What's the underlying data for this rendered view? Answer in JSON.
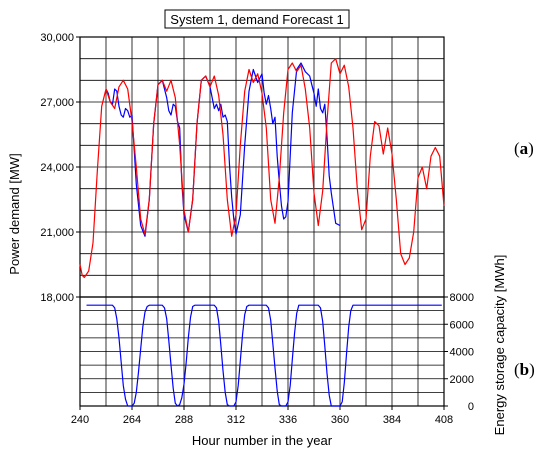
{
  "chart_data": [
    {
      "panel_label": "(a)",
      "type": "line",
      "title": "System 1, demand Forecast 1",
      "ylabel": "Power demand [MW]",
      "xlim": [
        240,
        408
      ],
      "ylim": [
        18000,
        30000
      ],
      "y_ticks": [
        "18,000",
        "21,000",
        "24,000",
        "27,000",
        "30,000"
      ],
      "grid": true,
      "colors": {
        "red": "#ff0000",
        "blue": "#0000ff"
      },
      "series": [
        {
          "color": "#ff0000",
          "x": [
            240,
            241,
            242,
            244,
            246,
            248,
            250,
            252,
            254,
            256,
            258,
            260,
            262,
            264,
            266,
            268,
            270,
            272,
            274,
            276,
            278,
            280,
            282,
            284,
            286,
            288,
            290,
            292,
            294,
            296,
            298,
            300,
            302,
            304,
            306,
            308,
            310,
            312,
            314,
            316,
            318,
            320,
            322,
            324,
            326,
            328,
            330,
            332,
            334,
            336,
            338,
            340,
            342,
            344,
            346,
            348,
            350,
            352,
            354,
            356,
            358,
            360,
            362,
            364,
            366,
            368,
            370,
            372,
            374,
            376,
            378,
            380,
            382,
            384,
            386,
            388,
            390,
            392,
            394,
            396,
            398,
            400,
            402,
            404,
            406,
            408
          ],
          "y": [
            19500,
            19000,
            18900,
            19200,
            20500,
            23800,
            26800,
            27600,
            27000,
            26700,
            27700,
            28000,
            27600,
            26100,
            24000,
            21600,
            20900,
            22500,
            26000,
            27800,
            28000,
            27500,
            28000,
            27200,
            25000,
            22000,
            21000,
            22500,
            26000,
            28000,
            28200,
            27700,
            28200,
            27300,
            25500,
            22500,
            20800,
            21800,
            25000,
            27500,
            28500,
            27900,
            28300,
            27400,
            25800,
            22500,
            21400,
            23500,
            26500,
            28500,
            28800,
            28400,
            28700,
            27600,
            25800,
            22800,
            21300,
            22900,
            26100,
            28800,
            29000,
            28300,
            28700,
            27700,
            25800,
            23000,
            21100,
            21600,
            24500,
            26100,
            25900,
            24600,
            25800,
            24600,
            22500,
            20000,
            19500,
            19800,
            21000,
            23500,
            24000,
            23000,
            24500,
            24900,
            24500,
            22200
          ]
        },
        {
          "color": "#0000ff",
          "x": [
            252,
            253,
            254,
            255,
            256,
            257,
            258,
            259,
            260,
            261,
            262,
            263,
            264,
            265,
            266,
            268,
            270,
            272,
            274,
            276,
            278,
            279,
            280,
            281,
            282,
            283,
            284,
            285,
            286,
            287,
            288,
            290,
            292,
            294,
            296,
            298,
            300,
            302,
            303,
            304,
            305,
            306,
            307,
            308,
            309,
            310,
            311,
            312,
            314,
            316,
            318,
            320,
            322,
            324,
            325,
            326,
            327,
            328,
            329,
            330,
            331,
            332,
            333,
            334,
            335,
            336,
            338,
            340,
            342,
            344,
            346,
            347,
            348,
            349,
            350,
            351,
            352,
            353,
            354,
            355,
            356,
            357,
            358,
            360
          ],
          "y": [
            27600,
            27400,
            27000,
            26900,
            27600,
            27500,
            26800,
            26400,
            26300,
            26700,
            26600,
            26300,
            26400,
            24800,
            23200,
            21300,
            20800,
            22500,
            26000,
            27800,
            28000,
            27600,
            27200,
            26600,
            26400,
            26900,
            26800,
            26100,
            25800,
            23300,
            21800,
            21000,
            22500,
            26000,
            28000,
            28200,
            27700,
            26700,
            26900,
            26600,
            26900,
            26300,
            26400,
            26100,
            24100,
            22600,
            21600,
            20900,
            21800,
            25000,
            27500,
            28500,
            27900,
            28300,
            27400,
            26900,
            27300,
            26700,
            26000,
            26300,
            24500,
            23300,
            22200,
            21600,
            21700,
            22400,
            26500,
            28500,
            28800,
            28400,
            28200,
            27800,
            27400,
            26800,
            27600,
            26700,
            26500,
            26900,
            25400,
            23600,
            22800,
            22100,
            21400,
            21300
          ]
        }
      ]
    },
    {
      "panel_label": "(b)",
      "type": "line",
      "xlabel": "Hour number in the year",
      "ylabel": "Energy storage capacity [MWh]",
      "xlim": [
        240,
        408
      ],
      "ylim": [
        0,
        8000
      ],
      "x_ticks": [
        "240",
        "264",
        "288",
        "312",
        "336",
        "360",
        "384",
        "408"
      ],
      "y_ticks": [
        "0",
        "2000",
        "4000",
        "6000",
        "8000"
      ],
      "grid": true,
      "series": [
        {
          "color": "#0000ff",
          "x": [
            243,
            255,
            256,
            257,
            258,
            259,
            260,
            261,
            262,
            263,
            264,
            265,
            266,
            267,
            268,
            269,
            270,
            271,
            272,
            273,
            274,
            278,
            279,
            280,
            281,
            282,
            283,
            284,
            285,
            286,
            287,
            288,
            289,
            290,
            291,
            292,
            293,
            294,
            302,
            303,
            304,
            305,
            306,
            307,
            308,
            309,
            310,
            311,
            312,
            313,
            314,
            315,
            316,
            317,
            318,
            326,
            327,
            328,
            329,
            330,
            331,
            332,
            333,
            334,
            335,
            336,
            337,
            338,
            339,
            340,
            341,
            342,
            350,
            351,
            352,
            353,
            354,
            355,
            356,
            357,
            358,
            359,
            360,
            361,
            362,
            363,
            364,
            365,
            366,
            407
          ],
          "y": [
            7400,
            7400,
            7200,
            6400,
            5000,
            3200,
            1500,
            500,
            0,
            0,
            0,
            200,
            1000,
            2500,
            4200,
            5800,
            6900,
            7300,
            7400,
            7400,
            7400,
            7400,
            7200,
            6400,
            4800,
            3000,
            1300,
            200,
            0,
            100,
            600,
            1600,
            3200,
            5000,
            6500,
            7300,
            7400,
            7400,
            7400,
            7200,
            6200,
            4500,
            2600,
            1000,
            100,
            0,
            0,
            0,
            300,
            1500,
            3300,
            5200,
            6700,
            7300,
            7400,
            7400,
            7200,
            6300,
            4600,
            2800,
            1100,
            100,
            0,
            0,
            0,
            300,
            1500,
            3400,
            5300,
            6800,
            7400,
            7400,
            7400,
            7200,
            6200,
            4400,
            2400,
            800,
            0,
            0,
            0,
            0,
            0,
            300,
            1700,
            3800,
            5800,
            7000,
            7400,
            7400
          ]
        }
      ]
    }
  ]
}
